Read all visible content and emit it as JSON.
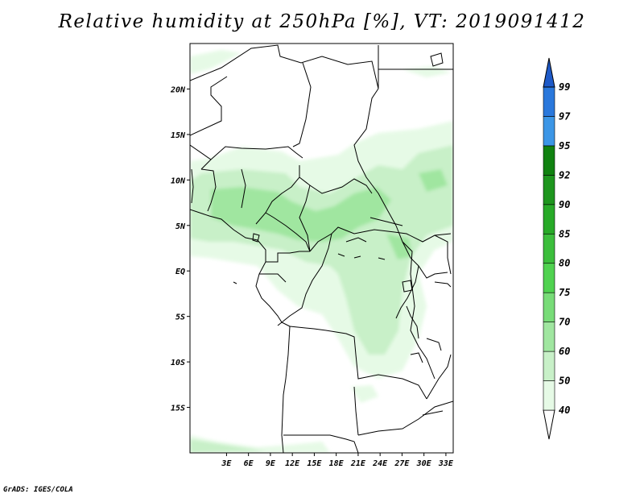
{
  "title": "Relative humidity at 250hPa [%], VT: 2019091412",
  "credit": "GrADS: IGES/COLA",
  "map": {
    "lon_range": [
      -2,
      34
    ],
    "lat_range": [
      -20,
      25
    ],
    "lon_ticks": [
      {
        "value": 3,
        "label": "3E"
      },
      {
        "value": 6,
        "label": "6E"
      },
      {
        "value": 9,
        "label": "9E"
      },
      {
        "value": 12,
        "label": "12E"
      },
      {
        "value": 15,
        "label": "15E"
      },
      {
        "value": 18,
        "label": "18E"
      },
      {
        "value": 21,
        "label": "21E"
      },
      {
        "value": 24,
        "label": "24E"
      },
      {
        "value": 27,
        "label": "27E"
      },
      {
        "value": 30,
        "label": "30E"
      },
      {
        "value": 33,
        "label": "33E"
      }
    ],
    "lat_ticks": [
      {
        "value": 20,
        "label": "20N"
      },
      {
        "value": 15,
        "label": "15N"
      },
      {
        "value": 10,
        "label": "10N"
      },
      {
        "value": 5,
        "label": "5N"
      },
      {
        "value": 0,
        "label": "EQ"
      },
      {
        "value": -5,
        "label": "5S"
      },
      {
        "value": -10,
        "label": "10S"
      },
      {
        "value": -15,
        "label": "15S"
      }
    ]
  },
  "colorbar": {
    "levels": [
      "40",
      "50",
      "60",
      "70",
      "75",
      "80",
      "85",
      "90",
      "92",
      "95",
      "97",
      "99"
    ],
    "colors": [
      "#ffffff",
      "#e6fae6",
      "#c8f0c8",
      "#a0e6a0",
      "#78dc78",
      "#50d250",
      "#3cbe3c",
      "#28aa28",
      "#1e961e",
      "#108210",
      "#3c96e6",
      "#2a78dc",
      "#1e5ac8"
    ]
  },
  "colors": {
    "rh_light": "#e6fae6",
    "rh_mid": "#c8f0c8",
    "rh_high": "#a0e6a0",
    "border": "#000000"
  }
}
